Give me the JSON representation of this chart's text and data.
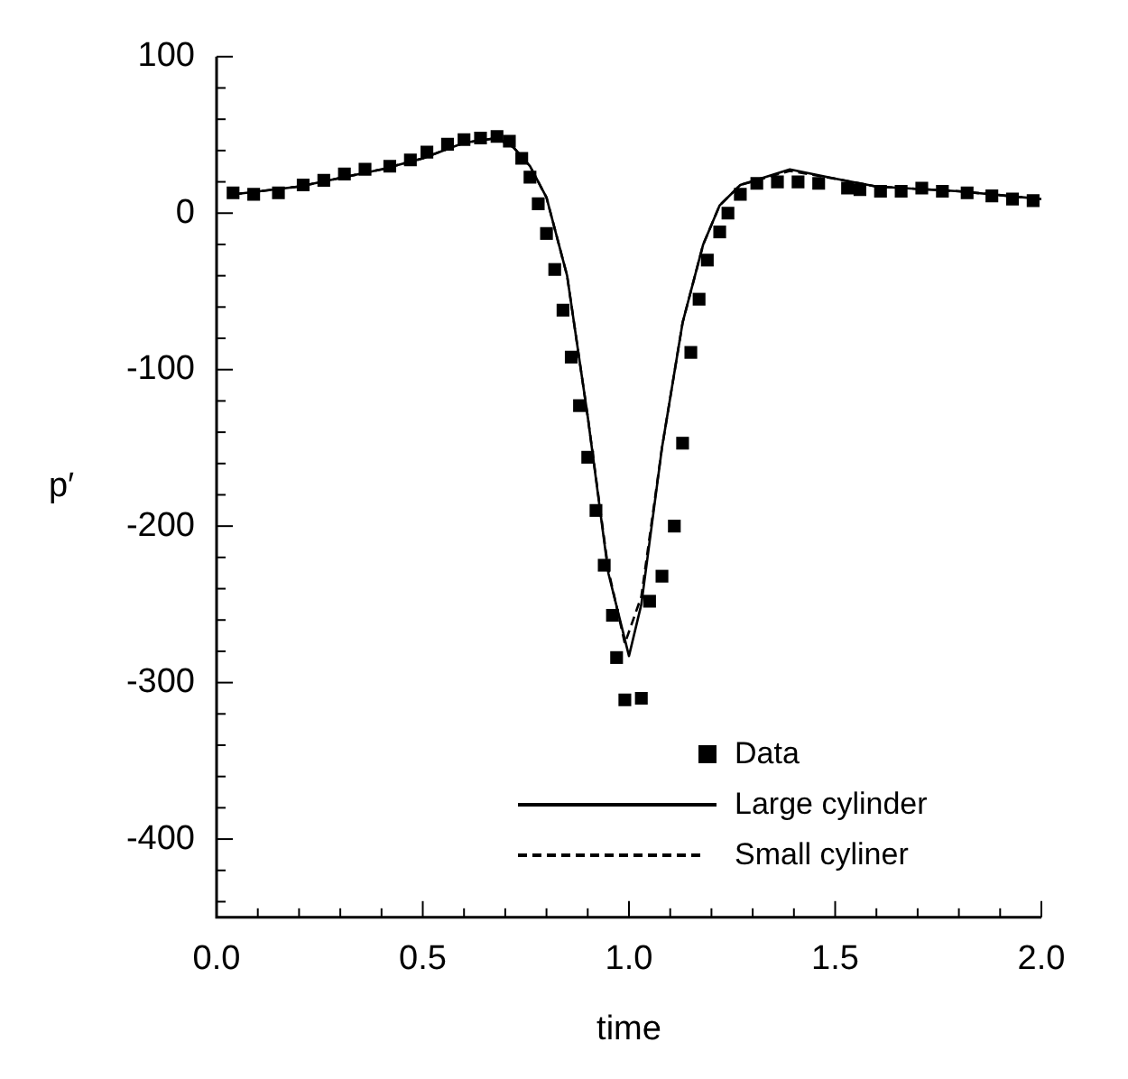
{
  "chart_data": {
    "type": "line",
    "xlabel": "time",
    "ylabel": "p′",
    "xlim": [
      0,
      2
    ],
    "ylim": [
      -450,
      100
    ],
    "xticks": [
      {
        "value": 0,
        "label": "0.0"
      },
      {
        "value": 0.5,
        "label": "0.5"
      },
      {
        "value": 1,
        "label": "1.0"
      },
      {
        "value": 1.5,
        "label": "1.5"
      },
      {
        "value": 2,
        "label": "2.0"
      }
    ],
    "yticks": [
      -400,
      -300,
      -200,
      -100,
      0,
      100
    ],
    "grid": false,
    "legend": "bottom right",
    "series": [
      {
        "name": "Data",
        "type": "scatter",
        "marker": "square",
        "color": "#000000",
        "x": [
          0.04,
          0.09,
          0.15,
          0.21,
          0.26,
          0.31,
          0.36,
          0.42,
          0.47,
          0.51,
          0.56,
          0.6,
          0.64,
          0.68,
          0.71,
          0.74,
          0.76,
          0.78,
          0.8,
          0.82,
          0.84,
          0.86,
          0.88,
          0.9,
          0.92,
          0.94,
          0.96,
          0.97,
          0.99,
          1.03,
          1.05,
          1.08,
          1.11,
          1.13,
          1.15,
          1.17,
          1.19,
          1.22,
          1.24,
          1.27,
          1.31,
          1.36,
          1.41,
          1.46,
          1.53,
          1.56,
          1.61,
          1.66,
          1.71,
          1.76,
          1.82,
          1.88,
          1.93,
          1.98
        ],
        "values": [
          13,
          12,
          13,
          18,
          21,
          25,
          28,
          30,
          34,
          39,
          44,
          47,
          48,
          49,
          46,
          35,
          23,
          6,
          -13,
          -36,
          -62,
          -92,
          -123,
          -156,
          -190,
          -225,
          -257,
          -284,
          -311,
          -310,
          -248,
          -232,
          -200,
          -147,
          -89,
          -55,
          -30,
          -12,
          0,
          12,
          19,
          20,
          20,
          19,
          16,
          15,
          14,
          14,
          16,
          14,
          13,
          11,
          9,
          8
        ]
      },
      {
        "name": "Large cylinder",
        "type": "line",
        "line_style": "solid",
        "marker": "none",
        "color": "#000000",
        "x": [
          0.04,
          0.2,
          0.4,
          0.5,
          0.6,
          0.68,
          0.72,
          0.76,
          0.8,
          0.85,
          0.9,
          0.95,
          1.0,
          1.03,
          1.08,
          1.13,
          1.18,
          1.22,
          1.27,
          1.39,
          1.5,
          1.6,
          1.8,
          2.0
        ],
        "values": [
          12,
          17,
          28,
          35,
          45,
          48,
          42,
          30,
          10,
          -40,
          -130,
          -230,
          -283,
          -250,
          -150,
          -70,
          -20,
          5,
          18,
          28,
          22,
          17,
          14,
          9
        ]
      },
      {
        "name": "Small cyliner",
        "type": "line",
        "line_style": "dashed",
        "marker": "none",
        "color": "#000000",
        "x": [
          0.04,
          0.2,
          0.4,
          0.5,
          0.6,
          0.68,
          0.72,
          0.76,
          0.8,
          0.85,
          0.9,
          0.95,
          0.99,
          1.03,
          1.08,
          1.13,
          1.18,
          1.22,
          1.27,
          1.39,
          1.5,
          1.6,
          1.8,
          2.0
        ],
        "values": [
          12,
          17,
          28,
          35,
          45,
          48,
          42,
          30,
          10,
          -40,
          -130,
          -228,
          -275,
          -245,
          -150,
          -70,
          -20,
          5,
          18,
          27,
          22,
          17,
          14,
          9
        ]
      }
    ]
  }
}
